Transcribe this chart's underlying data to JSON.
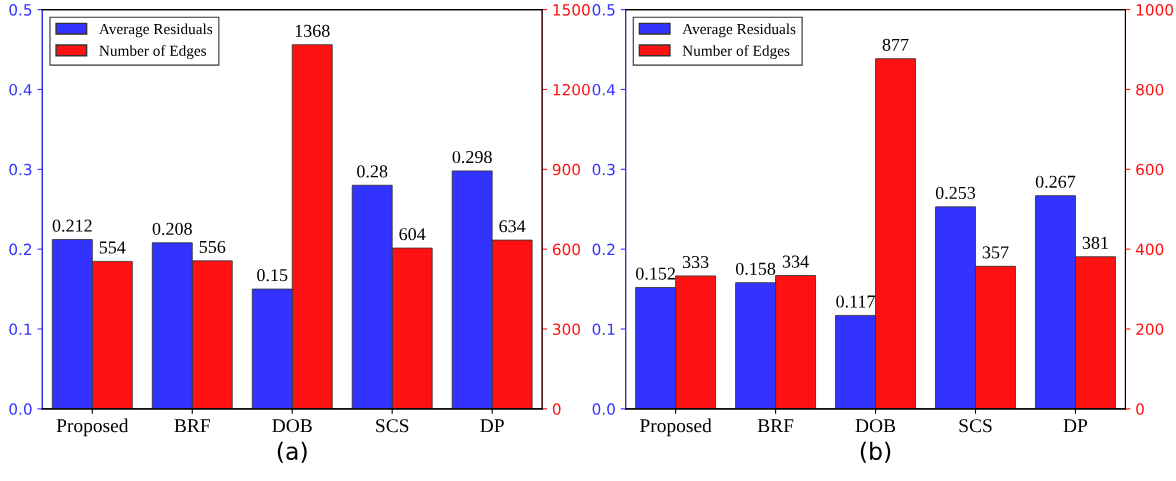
{
  "chart_data": [
    {
      "type": "bar",
      "xlabel": "(a)",
      "categories": [
        "Proposed",
        "BRF",
        "DOB",
        "SCS",
        "DP"
      ],
      "series": [
        {
          "name": "Average Residuals",
          "color": "#3333ff",
          "values": [
            0.212,
            0.208,
            0.15,
            0.28,
            0.298
          ]
        },
        {
          "name": "Number of Edges",
          "color": "#ff1111",
          "axis": "y2",
          "values": [
            554,
            556,
            1368,
            604,
            634
          ]
        }
      ],
      "ylim": [
        0,
        0.5
      ],
      "yticks": [
        {
          "value": 0,
          "label": "0.0"
        },
        0.1,
        0.2,
        0.3,
        0.4,
        0.5
      ],
      "y2lim": [
        0,
        1500
      ],
      "y2ticks": [
        0,
        300,
        600,
        900,
        1200,
        1500
      ],
      "data_labels": true,
      "legend": "top left",
      "grid": false
    },
    {
      "type": "bar",
      "xlabel": "(b)",
      "categories": [
        "Proposed",
        "BRF",
        "DOB",
        "SCS",
        "DP"
      ],
      "series": [
        {
          "name": "Average Residuals",
          "color": "#3333ff",
          "values": [
            0.152,
            0.158,
            0.117,
            0.253,
            0.267
          ]
        },
        {
          "name": "Number of Edges",
          "color": "#ff1111",
          "axis": "y2",
          "values": [
            333,
            334,
            877,
            357,
            381
          ]
        }
      ],
      "ylim": [
        0,
        0.5
      ],
      "yticks": [
        {
          "value": 0,
          "label": "0.0"
        },
        0.1,
        0.2,
        0.3,
        0.4,
        0.5
      ],
      "y2lim": [
        0,
        1000
      ],
      "y2ticks": [
        0,
        200,
        400,
        600,
        800,
        1000
      ],
      "data_labels": true,
      "legend": "top left",
      "grid": false
    }
  ]
}
